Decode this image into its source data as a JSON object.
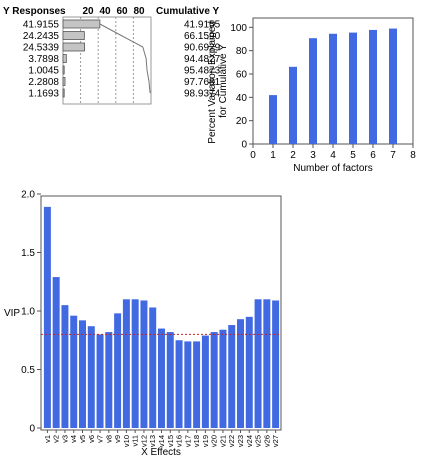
{
  "chart_data": [
    {
      "type": "table",
      "columns": [
        "Y Responses",
        "Cumulative Y"
      ],
      "bar_axis_ticks": [
        "20",
        "40",
        "60",
        "80"
      ],
      "y_responses": [
        "41.9155",
        "24.2435",
        "24.5339",
        "3.7898",
        "1.0045",
        "2.2808",
        "1.1693"
      ],
      "cumulative_y": [
        "41.9155",
        "66.1590",
        "90.6929",
        "94.4827",
        "95.4873",
        "97.7681",
        "98.9374"
      ],
      "bar_values": [
        41.9155,
        24.2435,
        24.5339,
        3.7898,
        1.0045,
        2.2808,
        1.1693
      ],
      "line_values": [
        41.9155,
        66.159,
        90.6929,
        94.4827,
        95.4873,
        97.7681,
        98.9374
      ],
      "xlim": [
        0,
        100
      ]
    },
    {
      "type": "bar",
      "xlabel": "Number of factors",
      "ylabel": "Percent Variation Explained for Cumulative Y",
      "x": [
        1,
        2,
        3,
        4,
        5,
        6,
        7
      ],
      "values": [
        41.9155,
        66.159,
        90.6929,
        94.4827,
        95.4873,
        97.7681,
        98.9374
      ],
      "xlim": [
        0,
        8
      ],
      "ylim": [
        0,
        108
      ],
      "xticks": [
        "0",
        "1",
        "2",
        "3",
        "4",
        "5",
        "6",
        "7",
        "8"
      ],
      "yticks": [
        "0",
        "20",
        "40",
        "60",
        "80",
        "100"
      ],
      "bar_color": "#4169e1"
    },
    {
      "type": "bar",
      "xlabel": "X Effects",
      "ylabel": "VIP",
      "categories": [
        "v1",
        "v2",
        "v3",
        "v4",
        "v5",
        "v6",
        "v7",
        "v8",
        "v9",
        "v10",
        "v11",
        "v12",
        "v13",
        "v14",
        "v15",
        "v16",
        "v17",
        "v18",
        "v19",
        "v20",
        "v21",
        "v22",
        "v23",
        "v24",
        "v25",
        "v26",
        "v27"
      ],
      "values": [
        1.89,
        1.29,
        1.05,
        0.96,
        0.92,
        0.87,
        0.8,
        0.82,
        0.98,
        1.1,
        1.1,
        1.09,
        1.03,
        0.85,
        0.82,
        0.75,
        0.74,
        0.74,
        0.79,
        0.82,
        0.84,
        0.88,
        0.93,
        0.95,
        1.1,
        1.1,
        1.09
      ],
      "ylim": [
        0,
        2.0
      ],
      "yticks": [
        "0",
        "0.5",
        "1.0",
        "1.5",
        "2.0"
      ],
      "reference_line": 0.8,
      "reference_color": "#d02020",
      "bar_color": "#4169e1"
    }
  ]
}
